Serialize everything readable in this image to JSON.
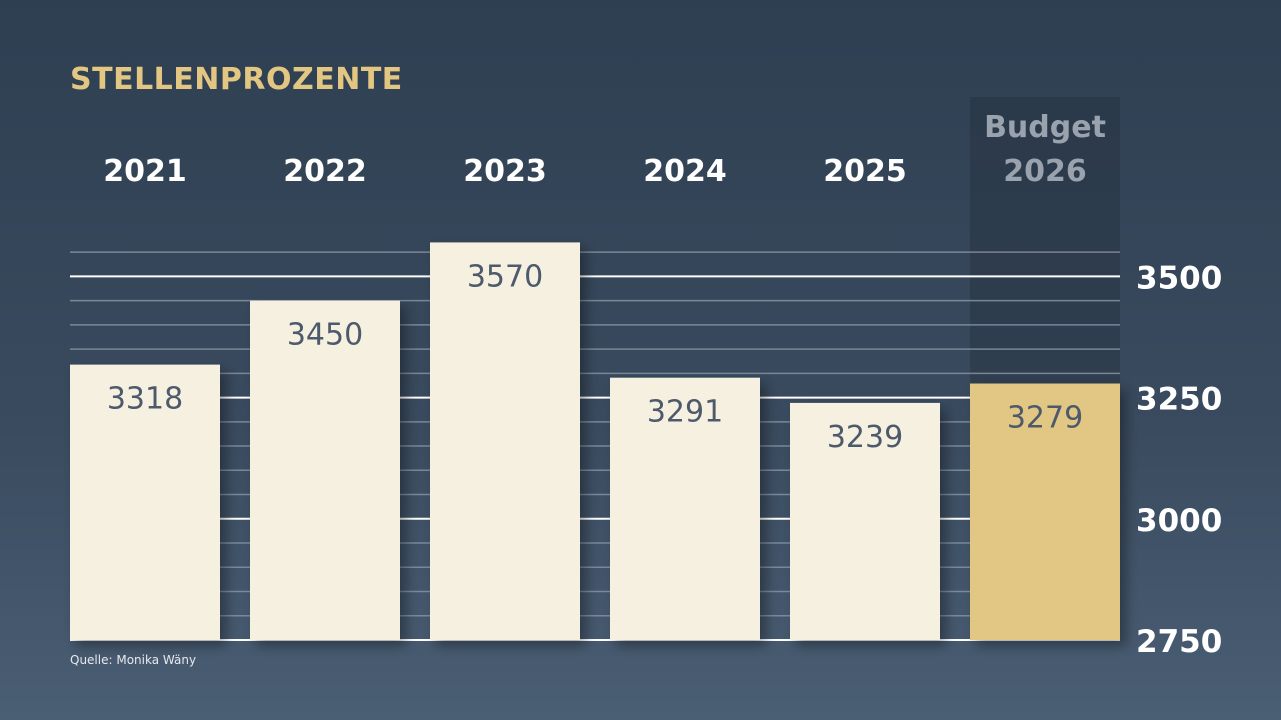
{
  "title": "STELLENPROZENTE",
  "source": "Quelle: Monika Wäny",
  "colors": {
    "bar": "#f6f0e0",
    "highlight_bar": "#e2c684",
    "bar_label": "#4c5a6c",
    "title": "#e3c682",
    "category_label": "#ffffff",
    "highlight_label": "#9aa3ad",
    "gridline_major": "#ffffff",
    "gridline_minor": "#8a97a6"
  },
  "chart_data": {
    "type": "bar",
    "title": "STELLENPROZENTE",
    "categories": [
      "2021",
      "2022",
      "2023",
      "2024",
      "2025",
      "Budget 2026"
    ],
    "category_lines": [
      [
        "2021"
      ],
      [
        "2022"
      ],
      [
        "2023"
      ],
      [
        "2024"
      ],
      [
        "2025"
      ],
      [
        "Budget",
        "2026"
      ]
    ],
    "values": [
      3318,
      3450,
      3570,
      3291,
      3239,
      3279
    ],
    "highlight_index": 5,
    "ylim": [
      2750,
      3575
    ],
    "yticks": [
      2750,
      3000,
      3250,
      3500
    ],
    "minor_tick_step": 50,
    "grid": true,
    "xlabel": "",
    "ylabel": ""
  }
}
